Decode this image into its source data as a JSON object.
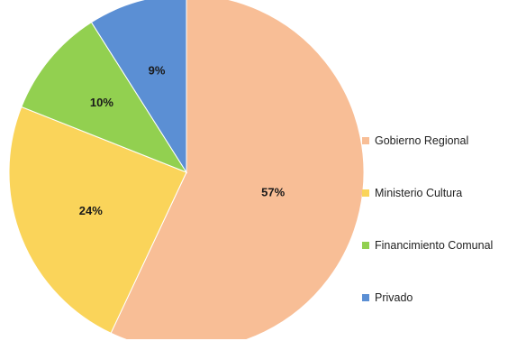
{
  "chart_data": {
    "type": "pie",
    "title": "",
    "categories": [
      "Gobierno Regional",
      "Ministerio Cultura",
      "Financimiento Comunal",
      "Privado"
    ],
    "values": [
      57,
      24,
      10,
      9
    ],
    "labels": [
      "57%",
      "24%",
      "10%",
      "9%"
    ],
    "colors": [
      "#F8BE96",
      "#FAD45A",
      "#92D050",
      "#5B8FD4"
    ],
    "legend_position": "right",
    "start_angle_deg": 0,
    "direction": "clockwise"
  }
}
